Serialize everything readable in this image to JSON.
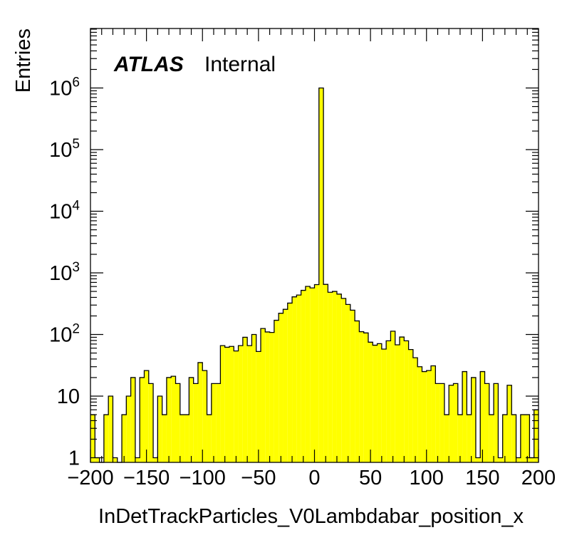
{
  "chart_data": {
    "type": "bar",
    "histogram": true,
    "title": "",
    "xlabel": "InDetTrackParticles_V0Lambdabar_position_x",
    "ylabel": "Entries",
    "annotation": {
      "experiment": "ATLAS",
      "status": "Internal"
    },
    "xlim": [
      -200,
      200
    ],
    "ylim": [
      0.7,
      10000000
    ],
    "y_scale": "log",
    "grid": false,
    "legend": "none",
    "bin_width": 4,
    "bin_edges_start": -200,
    "values": [
      5,
      1,
      0,
      5,
      10,
      1,
      0,
      5,
      10,
      20,
      1,
      20,
      26,
      16,
      1,
      10,
      5,
      20,
      21,
      16,
      5,
      5,
      20,
      16,
      35,
      26,
      5,
      16,
      16,
      66,
      62,
      64,
      54,
      66,
      90,
      66,
      100,
      53,
      125,
      110,
      108,
      170,
      221,
      256,
      323,
      408,
      437,
      520,
      603,
      570,
      645,
      1000000,
      650,
      484,
      500,
      452,
      385,
      307,
      248,
      166,
      111,
      106,
      75,
      67,
      71,
      58,
      79,
      113,
      68,
      91,
      79,
      57,
      42,
      30,
      25,
      26,
      31,
      16,
      16,
      5,
      15,
      16,
      5,
      25,
      5,
      20,
      1,
      25,
      16,
      5,
      16,
      1,
      5,
      15,
      5,
      1,
      5,
      5,
      1,
      6
    ],
    "colors": {
      "fill": "#ffff00",
      "edge": "#000000"
    },
    "x_ticks": [
      "−200",
      "−150",
      "−100",
      "−50",
      "0",
      "50",
      "100",
      "150",
      "200"
    ],
    "y_ticks": [
      {
        "mantissa": "1",
        "exponent": ""
      },
      {
        "mantissa": "10",
        "exponent": ""
      },
      {
        "mantissa": "10",
        "exponent": "2"
      },
      {
        "mantissa": "10",
        "exponent": "3"
      },
      {
        "mantissa": "10",
        "exponent": "4"
      },
      {
        "mantissa": "10",
        "exponent": "5"
      },
      {
        "mantissa": "10",
        "exponent": "6"
      }
    ]
  }
}
